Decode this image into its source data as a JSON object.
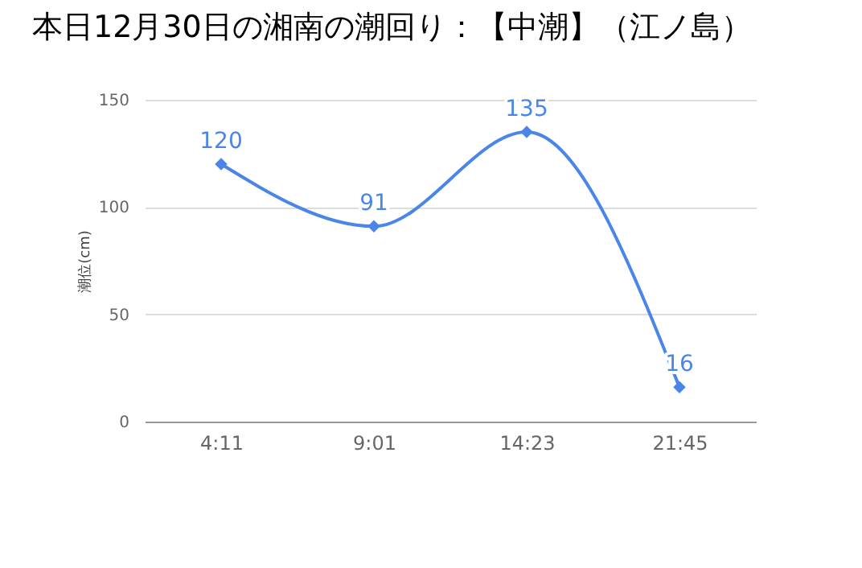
{
  "chart_data": {
    "type": "line",
    "title": "本日12月30日の湘南の潮回り：【中潮】（江ノ島）",
    "ylabel": "潮位(cm)",
    "categories": [
      "4:11",
      "9:01",
      "14:23",
      "21:45"
    ],
    "series": [
      {
        "color": "#4a86e8",
        "values": [
          120,
          91,
          135,
          16
        ]
      }
    ],
    "ylim": [
      0,
      150
    ],
    "yticks": [
      0,
      50,
      100,
      150
    ],
    "grid": "y",
    "marker": "diamond",
    "line_style": "solid",
    "data_labels": true
  }
}
